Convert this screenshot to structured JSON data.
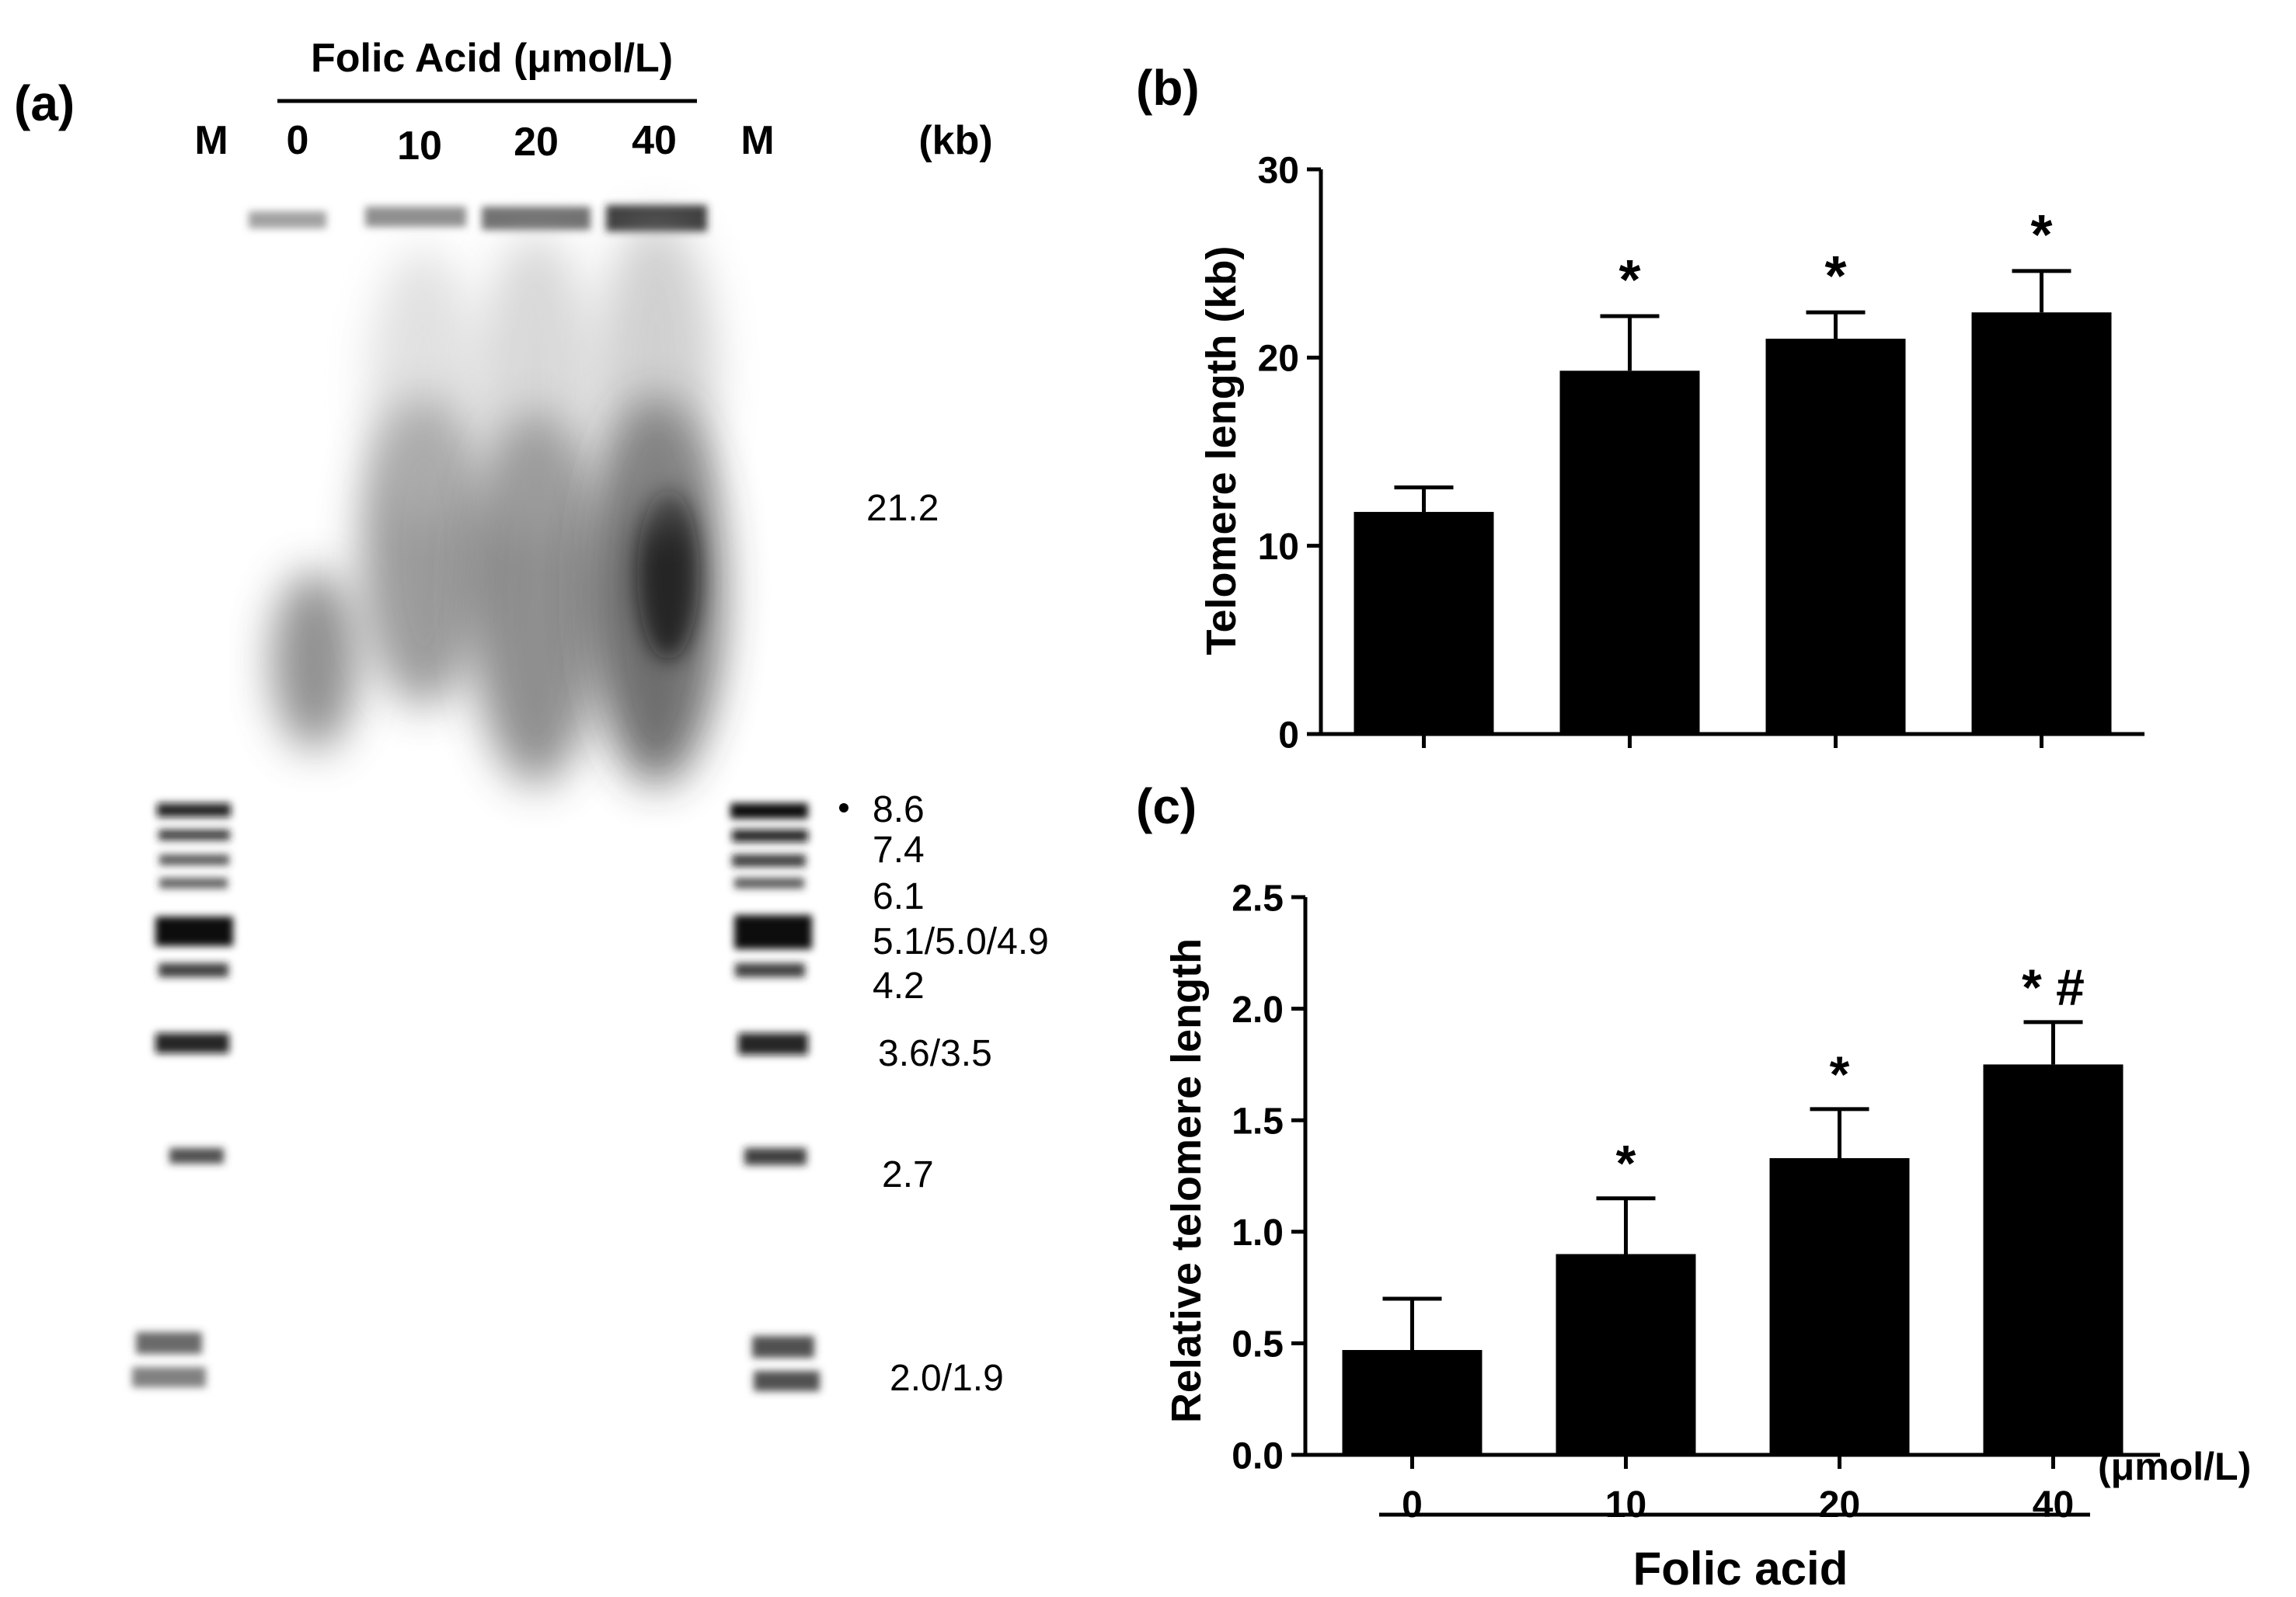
{
  "panel_a": {
    "panel_label": "(a)",
    "header_title": "Folic Acid (μmol/L)",
    "lane_labels": [
      "M",
      "0",
      "10",
      "20",
      "40",
      "M"
    ],
    "unit_label": "(kb)",
    "marker_sizes": [
      "21.2",
      "8.6",
      "7.4",
      "6.1",
      "5.1/5.0/4.9",
      "4.2",
      "3.6/3.5",
      "2.7",
      "2.0/1.9"
    ]
  },
  "chart_data": [
    {
      "type": "bar",
      "panel_label": "(b)",
      "categories": [
        "0",
        "10",
        "20",
        "40"
      ],
      "values": [
        11.8,
        19.3,
        21.0,
        22.4
      ],
      "errors": [
        1.3,
        2.9,
        1.4,
        2.2
      ],
      "significance": [
        "",
        "*",
        "*",
        "*"
      ],
      "ylabel": "Telomere length (kb)",
      "ylim": [
        0,
        30
      ],
      "yticks": [
        0,
        10,
        20,
        30
      ],
      "bar_color": "#000000",
      "grid": false
    },
    {
      "type": "bar",
      "panel_label": "(c)",
      "categories": [
        "0",
        "10",
        "20",
        "40"
      ],
      "values": [
        0.47,
        0.9,
        1.33,
        1.75
      ],
      "errors": [
        0.23,
        0.25,
        0.22,
        0.19
      ],
      "significance": [
        "",
        "*",
        "*",
        "* #"
      ],
      "ylabel": "Relative telomere length",
      "ylim": [
        0,
        2.5
      ],
      "yticks": [
        0.0,
        0.5,
        1.0,
        1.5,
        2.0,
        2.5
      ],
      "x_unit": "(μmol/L)",
      "xlabel": "Folic acid",
      "bar_color": "#000000",
      "grid": false
    }
  ]
}
